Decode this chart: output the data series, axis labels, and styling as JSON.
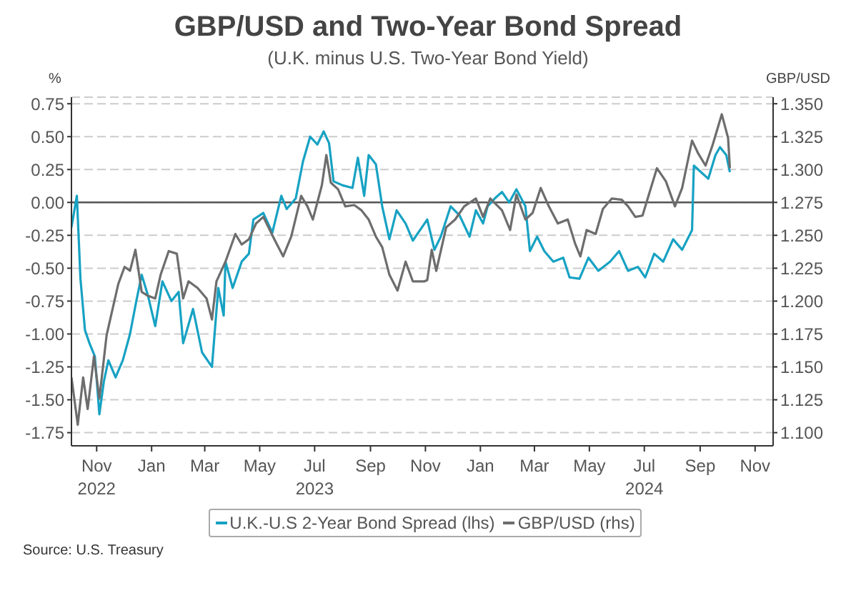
{
  "chart_data": {
    "type": "line",
    "title": "GBP/USD and Two-Year Bond Spread",
    "subtitle": "(U.K. minus U.S. Two-Year Bond Yield)",
    "ylabel": "%",
    "y2label": "GBP/USD",
    "annotations": [
      "Source: U.S. Treasury"
    ],
    "xlim": [
      "2022-10-04",
      "2024-11-21"
    ],
    "xticks": [
      {
        "value": "2022-11-01",
        "label": "Nov\n2022"
      },
      {
        "value": "2023-01-01",
        "label": "Jan"
      },
      {
        "value": "2023-03-01",
        "label": "Mar"
      },
      {
        "value": "2023-05-01",
        "label": "May"
      },
      {
        "value": "2023-07-01",
        "label": "Jul\n2023"
      },
      {
        "value": "2023-09-01",
        "label": "Sep"
      },
      {
        "value": "2023-11-01",
        "label": "Nov"
      },
      {
        "value": "2024-01-01",
        "label": "Jan"
      },
      {
        "value": "2024-03-01",
        "label": "Mar"
      },
      {
        "value": "2024-05-01",
        "label": "May"
      },
      {
        "value": "2024-07-01",
        "label": "Jul\n2024"
      },
      {
        "value": "2024-09-01",
        "label": "Sep"
      },
      {
        "value": "2024-11-01",
        "label": "Nov"
      }
    ],
    "ylim": [
      -1.85,
      0.8
    ],
    "yticks": [
      {
        "value": -1.75,
        "label": "-1.75"
      },
      {
        "value": -1.5,
        "label": "-1.50"
      },
      {
        "value": -1.25,
        "label": "-1.25"
      },
      {
        "value": -1,
        "label": "-1.00"
      },
      {
        "value": -0.75,
        "label": "-0.75"
      },
      {
        "value": -0.5,
        "label": "-0.50"
      },
      {
        "value": -0.25,
        "label": "-0.25"
      },
      {
        "value": 0,
        "label": "0.00"
      },
      {
        "value": 0.25,
        "label": "0.25"
      },
      {
        "value": 0.5,
        "label": "0.50"
      },
      {
        "value": 0.75,
        "label": "0.75"
      }
    ],
    "y2lim": [
      1.09,
      1.355
    ],
    "y2ticks": [
      {
        "value": 1.1,
        "label": "1.100"
      },
      {
        "value": 1.125,
        "label": "1.125"
      },
      {
        "value": 1.15,
        "label": "1.150"
      },
      {
        "value": 1.175,
        "label": "1.175"
      },
      {
        "value": 1.2,
        "label": "1.200"
      },
      {
        "value": 1.225,
        "label": "1.225"
      },
      {
        "value": 1.25,
        "label": "1.250"
      },
      {
        "value": 1.275,
        "label": "1.275"
      },
      {
        "value": 1.3,
        "label": "1.300"
      },
      {
        "value": 1.325,
        "label": "1.325"
      },
      {
        "value": 1.35,
        "label": "1.350"
      }
    ],
    "grid": "y",
    "legend": "bottom",
    "marker": "none",
    "line_style": "solid",
    "ref_lines": [
      {
        "axis": "y",
        "value": 0,
        "color": "#555555"
      }
    ],
    "series": [
      {
        "name": "U.K.-U.S 2-Year Bond Spread (lhs)",
        "color": "#17a2c3",
        "x": [
          "2022-10-04",
          "2022-10-10",
          "2022-10-14",
          "2022-10-19",
          "2022-10-24",
          "2022-10-30",
          "2022-11-04",
          "2022-11-09",
          "2022-11-14",
          "2022-11-22",
          "2022-11-30",
          "2022-12-08",
          "2022-12-15",
          "2022-12-21",
          "2022-12-28",
          "2023-01-05",
          "2023-01-13",
          "2023-01-23",
          "2023-01-31",
          "2023-02-05",
          "2023-02-16",
          "2023-02-26",
          "2023-03-09",
          "2023-03-16",
          "2023-03-22",
          "2023-03-24",
          "2023-04-01",
          "2023-04-11",
          "2023-04-19",
          "2023-04-24",
          "2023-05-05",
          "2023-05-15",
          "2023-05-25",
          "2023-05-31",
          "2023-06-10",
          "2023-06-18",
          "2023-06-26",
          "2023-07-04",
          "2023-07-11",
          "2023-07-17",
          "2023-07-22",
          "2023-08-01",
          "2023-08-12",
          "2023-08-18",
          "2023-08-25",
          "2023-08-30",
          "2023-09-07",
          "2023-09-14",
          "2023-09-22",
          "2023-09-30",
          "2023-10-10",
          "2023-10-18",
          "2023-10-31",
          "2023-11-03",
          "2023-11-11",
          "2023-11-18",
          "2023-11-29",
          "2023-12-09",
          "2023-12-20",
          "2023-12-27",
          "2024-01-04",
          "2024-01-09",
          "2024-01-17",
          "2024-01-25",
          "2024-02-02",
          "2024-02-10",
          "2024-02-20",
          "2024-02-25",
          "2024-03-04",
          "2024-03-12",
          "2024-03-22",
          "2024-04-02",
          "2024-04-09",
          "2024-04-20",
          "2024-04-30",
          "2024-05-11",
          "2024-05-24",
          "2024-06-03",
          "2024-06-13",
          "2024-06-24",
          "2024-07-02",
          "2024-07-12",
          "2024-07-22",
          "2024-08-02",
          "2024-08-12",
          "2024-08-23",
          "2024-08-25",
          "2024-09-02",
          "2024-09-10",
          "2024-09-18",
          "2024-09-23",
          "2024-09-30",
          "2024-10-04"
        ],
        "values": [
          -0.19,
          0.05,
          -0.58,
          -0.97,
          -1.07,
          -1.17,
          -1.61,
          -1.36,
          -1.2,
          -1.33,
          -1.2,
          -1.0,
          -0.75,
          -0.55,
          -0.71,
          -0.94,
          -0.6,
          -0.75,
          -0.68,
          -1.07,
          -0.81,
          -1.14,
          -1.25,
          -0.65,
          -0.86,
          -0.45,
          -0.65,
          -0.45,
          -0.39,
          -0.13,
          -0.08,
          -0.23,
          0.05,
          -0.05,
          0.03,
          0.31,
          0.5,
          0.44,
          0.54,
          0.45,
          0.16,
          0.13,
          0.11,
          0.34,
          0.05,
          0.36,
          0.29,
          -0.03,
          -0.28,
          -0.06,
          -0.16,
          -0.29,
          -0.16,
          -0.13,
          -0.36,
          -0.26,
          -0.03,
          -0.1,
          -0.26,
          -0.06,
          -0.16,
          -0.03,
          0.03,
          0.08,
          0,
          0.1,
          -0.03,
          -0.37,
          -0.26,
          -0.37,
          -0.45,
          -0.42,
          -0.57,
          -0.58,
          -0.42,
          -0.52,
          -0.45,
          -0.37,
          -0.52,
          -0.49,
          -0.57,
          -0.39,
          -0.45,
          -0.28,
          -0.36,
          -0.21,
          0.28,
          0.23,
          0.18,
          0.36,
          0.42,
          0.36,
          0.23
        ]
      },
      {
        "name": "GBP/USD (rhs)",
        "color": "#6d6d6d",
        "axis": "y2",
        "x": [
          "2022-10-04",
          "2022-10-11",
          "2022-10-17",
          "2022-10-22",
          "2022-10-29",
          "2022-11-04",
          "2022-11-12",
          "2022-11-17",
          "2022-11-25",
          "2022-12-02",
          "2022-12-08",
          "2022-12-14",
          "2022-12-21",
          "2022-12-28",
          "2023-01-05",
          "2023-01-11",
          "2023-01-20",
          "2023-01-29",
          "2023-02-05",
          "2023-02-11",
          "2023-02-21",
          "2023-03-03",
          "2023-03-09",
          "2023-03-14",
          "2023-03-24",
          "2023-04-04",
          "2023-04-11",
          "2023-04-19",
          "2023-04-27",
          "2023-05-05",
          "2023-05-18",
          "2023-05-27",
          "2023-06-05",
          "2023-06-16",
          "2023-06-23",
          "2023-06-29",
          "2023-07-09",
          "2023-07-14",
          "2023-07-19",
          "2023-07-27",
          "2023-08-04",
          "2023-08-14",
          "2023-08-22",
          "2023-08-30",
          "2023-09-07",
          "2023-09-14",
          "2023-09-22",
          "2023-10-01",
          "2023-10-10",
          "2023-10-18",
          "2023-10-31",
          "2023-11-03",
          "2023-11-08",
          "2023-11-13",
          "2023-11-24",
          "2023-12-04",
          "2023-12-14",
          "2023-12-27",
          "2024-01-04",
          "2024-01-12",
          "2024-01-25",
          "2024-02-03",
          "2024-02-10",
          "2024-02-20",
          "2024-02-28",
          "2024-03-08",
          "2024-03-17",
          "2024-03-27",
          "2024-04-07",
          "2024-04-15",
          "2024-04-21",
          "2024-04-28",
          "2024-05-08",
          "2024-05-16",
          "2024-05-26",
          "2024-06-06",
          "2024-06-13",
          "2024-06-21",
          "2024-06-29",
          "2024-07-07",
          "2024-07-15",
          "2024-07-25",
          "2024-08-04",
          "2024-08-12",
          "2024-08-23",
          "2024-08-30",
          "2024-09-07",
          "2024-09-15",
          "2024-09-25",
          "2024-10-02",
          "2024-10-04"
        ],
        "values": [
          1.142,
          1.106,
          1.142,
          1.118,
          1.158,
          1.126,
          1.174,
          1.189,
          1.213,
          1.226,
          1.223,
          1.239,
          1.207,
          1.204,
          1.202,
          1.22,
          1.238,
          1.236,
          1.202,
          1.215,
          1.21,
          1.202,
          1.186,
          1.215,
          1.23,
          1.251,
          1.243,
          1.247,
          1.259,
          1.264,
          1.246,
          1.234,
          1.249,
          1.28,
          1.272,
          1.262,
          1.288,
          1.311,
          1.29,
          1.285,
          1.272,
          1.273,
          1.269,
          1.262,
          1.249,
          1.241,
          1.22,
          1.208,
          1.23,
          1.215,
          1.215,
          1.216,
          1.239,
          1.223,
          1.256,
          1.262,
          1.272,
          1.278,
          1.264,
          1.278,
          1.269,
          1.254,
          1.281,
          1.262,
          1.267,
          1.286,
          1.272,
          1.259,
          1.262,
          1.244,
          1.234,
          1.254,
          1.251,
          1.27,
          1.278,
          1.277,
          1.272,
          1.264,
          1.265,
          1.283,
          1.301,
          1.291,
          1.272,
          1.286,
          1.322,
          1.312,
          1.303,
          1.319,
          1.342,
          1.324,
          1.301
        ]
      }
    ]
  }
}
